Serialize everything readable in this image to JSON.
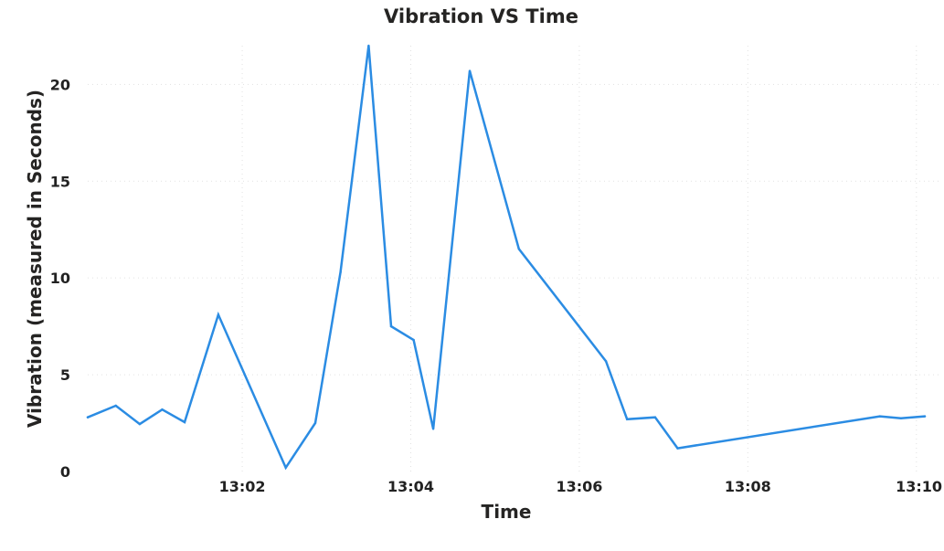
{
  "chart_data": {
    "type": "line",
    "title": "Vibration VS Time",
    "xlabel": "Time",
    "ylabel": "Vibration (measured in Seconds)",
    "xlim": [
      "13:00:10",
      "13:10:06"
    ],
    "ylim": [
      0,
      22
    ],
    "yticks": [
      0,
      5,
      10,
      15,
      20
    ],
    "xticks": [
      "13:02",
      "13:04",
      "13:06",
      "13:08",
      "13:10"
    ],
    "grid": true,
    "series": [
      {
        "color": "#2b8ce3",
        "points": [
          {
            "x": "13:00:10",
            "y": 2.8
          },
          {
            "x": "13:00:30",
            "y": 3.4
          },
          {
            "x": "13:00:47",
            "y": 2.45
          },
          {
            "x": "13:01:03",
            "y": 3.2
          },
          {
            "x": "13:01:19",
            "y": 2.55
          },
          {
            "x": "13:01:43",
            "y": 8.1
          },
          {
            "x": "13:02:31",
            "y": 0.2
          },
          {
            "x": "13:02:52",
            "y": 2.5
          },
          {
            "x": "13:03:10",
            "y": 10.3
          },
          {
            "x": "13:03:30",
            "y": 22.0
          },
          {
            "x": "13:03:46",
            "y": 7.5
          },
          {
            "x": "13:04:02",
            "y": 6.8
          },
          {
            "x": "13:04:16",
            "y": 2.2
          },
          {
            "x": "13:04:42",
            "y": 20.7
          },
          {
            "x": "13:05:17",
            "y": 11.5
          },
          {
            "x": "13:06:19",
            "y": 5.7
          },
          {
            "x": "13:06:34",
            "y": 2.7
          },
          {
            "x": "13:06:54",
            "y": 2.8
          },
          {
            "x": "13:07:10",
            "y": 1.2
          },
          {
            "x": "13:09:34",
            "y": 2.85
          },
          {
            "x": "13:09:49",
            "y": 2.75
          },
          {
            "x": "13:10:06",
            "y": 2.85
          }
        ]
      }
    ]
  }
}
